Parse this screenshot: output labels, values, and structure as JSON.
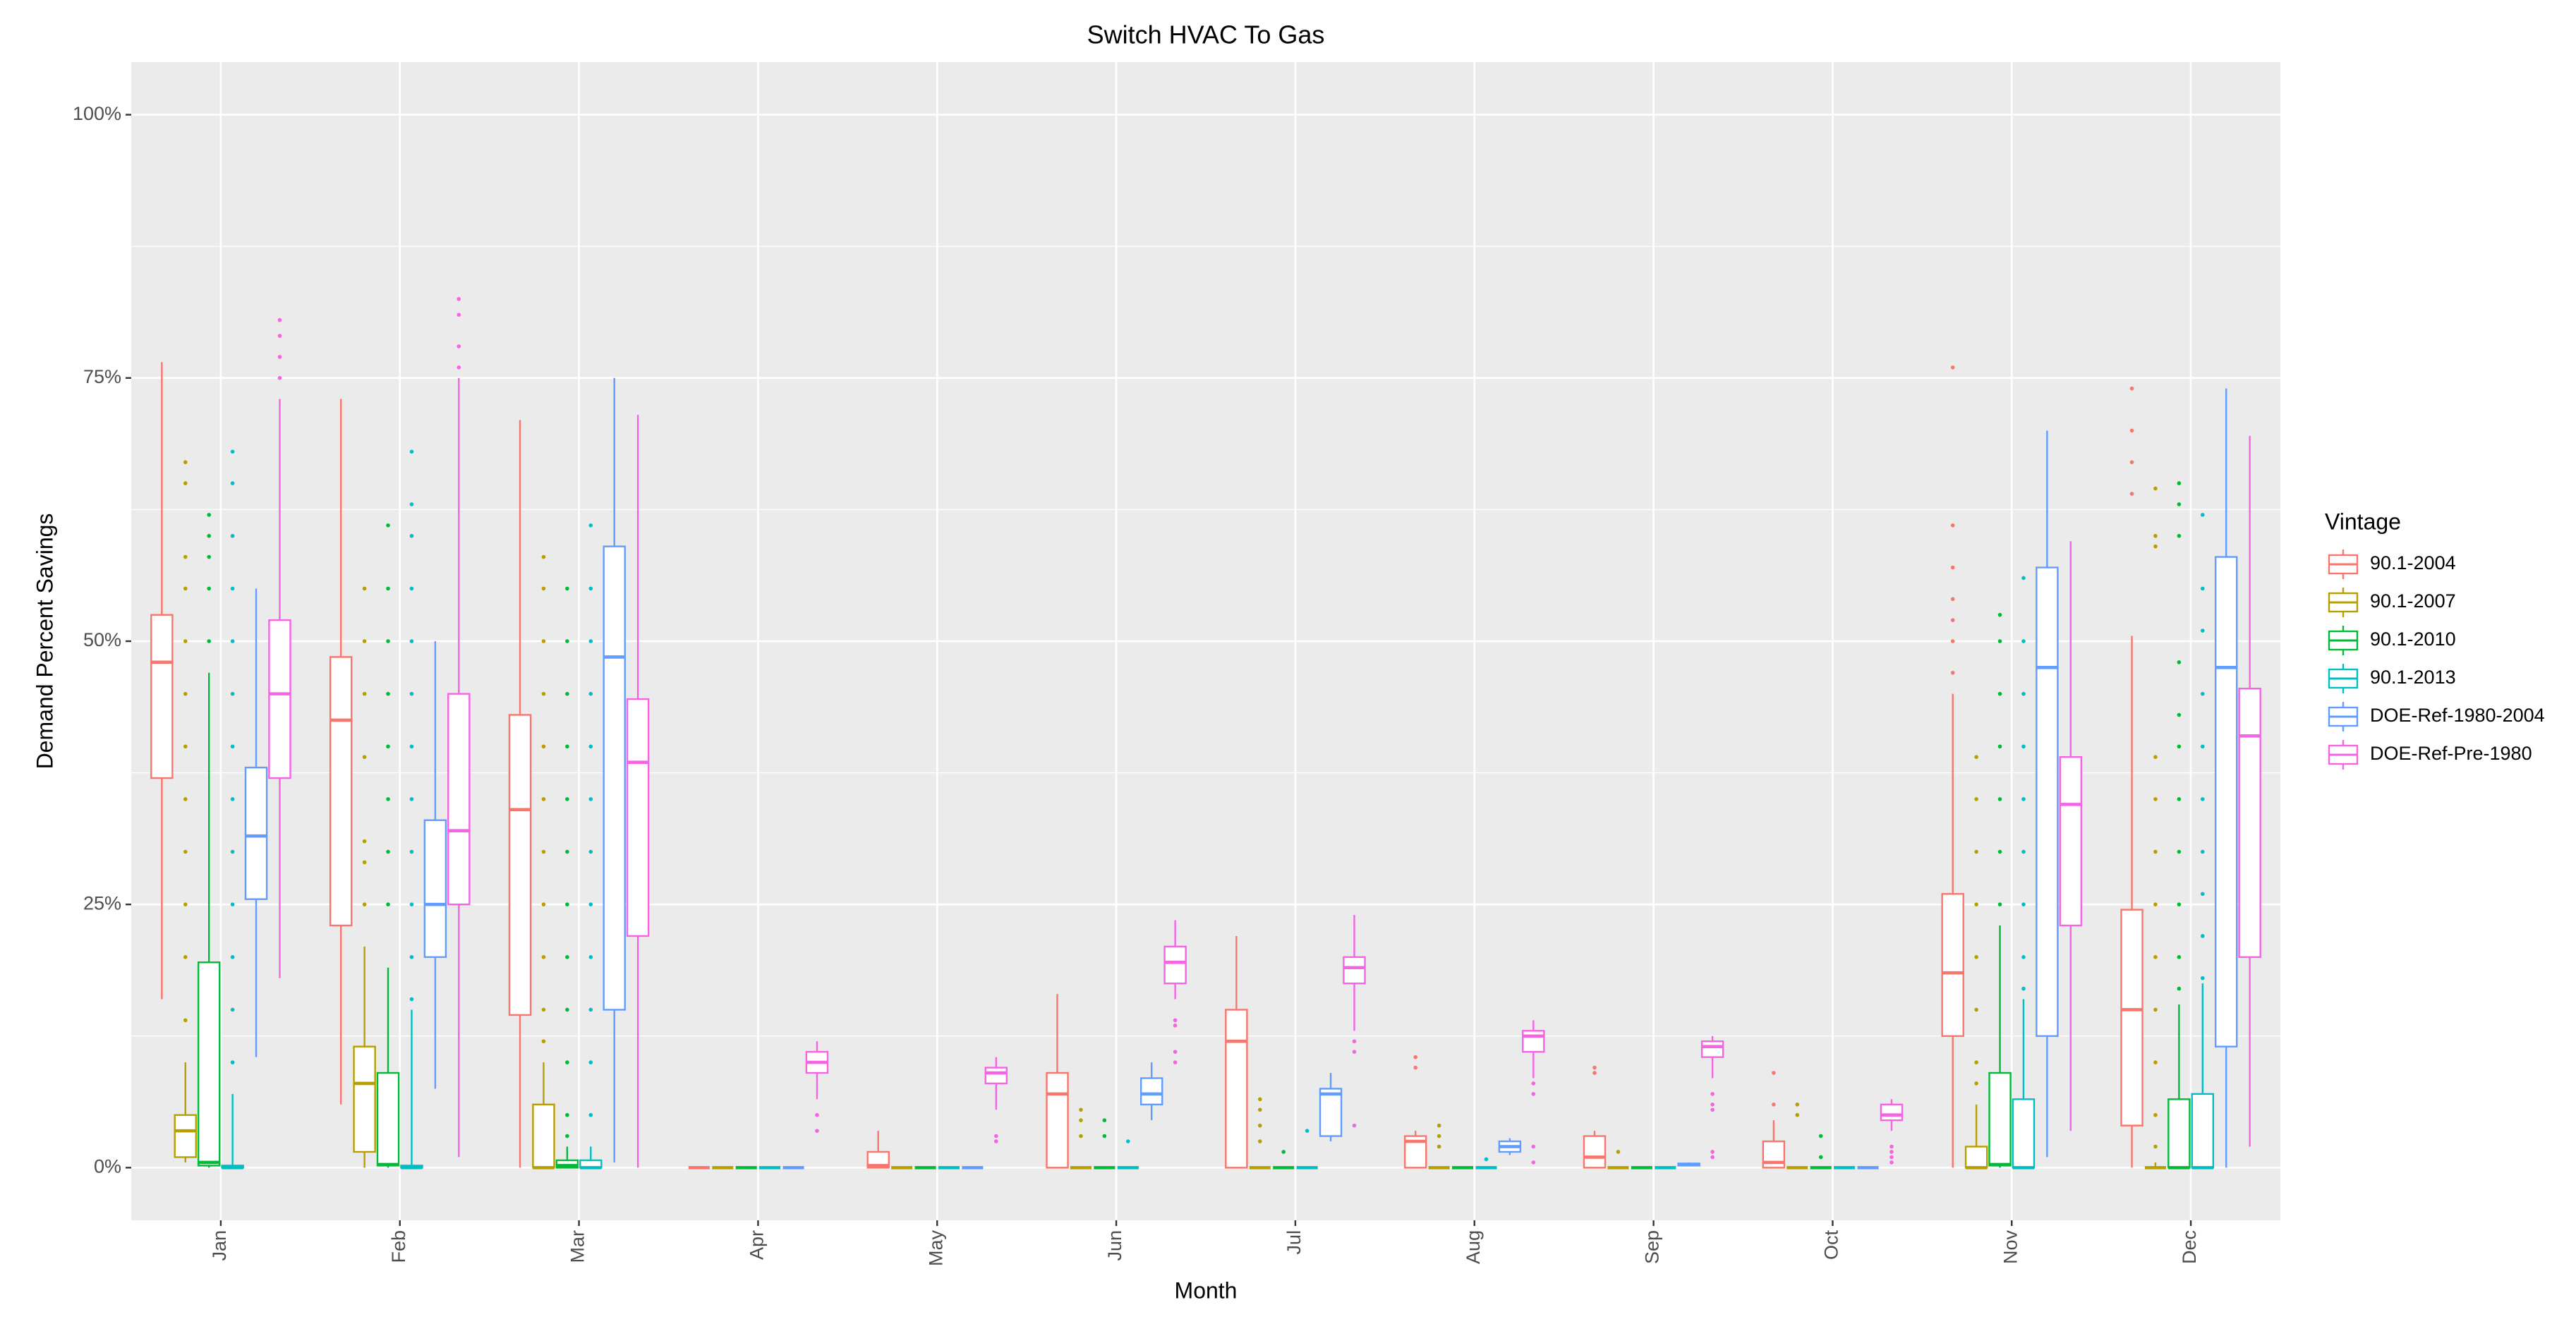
{
  "chart_data": {
    "type": "box",
    "title": "Switch HVAC To Gas",
    "x_label": "Month",
    "y_label": "Demand Percent Savings",
    "legend_title": "Vintage",
    "legend_position": "right",
    "grid": true,
    "categories": [
      "Jan",
      "Feb",
      "Mar",
      "Apr",
      "May",
      "Jun",
      "Jul",
      "Aug",
      "Sep",
      "Oct",
      "Nov",
      "Dec"
    ],
    "ylim": [
      -5,
      105
    ],
    "yticks": [
      {
        "value": 0,
        "label": "0%"
      },
      {
        "value": 25,
        "label": "25%"
      },
      {
        "value": 50,
        "label": "50%"
      },
      {
        "value": 75,
        "label": "75%"
      },
      {
        "value": 100,
        "label": "100%"
      }
    ],
    "series": [
      {
        "name": "90.1-2004",
        "color": "#F8766D",
        "values": [
          [
            16,
            37,
            48,
            52.5,
            76.5
          ],
          [
            6,
            23,
            42.5,
            48.5,
            73
          ],
          [
            0,
            14.5,
            34,
            43,
            71
          ],
          [
            0,
            0,
            0,
            0,
            0
          ],
          [
            0,
            0,
            0.2,
            1.5,
            3.5
          ],
          [
            0,
            0,
            7,
            9,
            16.5
          ],
          [
            0,
            0,
            12,
            15,
            22
          ],
          [
            0,
            0,
            2.5,
            3,
            3.5
          ],
          [
            0,
            0,
            1,
            3,
            3.5
          ],
          [
            0,
            0,
            0.5,
            2.5,
            4.5
          ],
          [
            0,
            12.5,
            18.5,
            26,
            45
          ],
          [
            0,
            4,
            15,
            24.5,
            50.5
          ]
        ],
        "outliers": [
          [],
          [],
          [],
          [],
          [],
          [],
          [],
          [
            9.5,
            10.5
          ],
          [
            9,
            9.5
          ],
          [
            6,
            9
          ],
          [
            47,
            50,
            52,
            54,
            57,
            61,
            76
          ],
          [
            64,
            67,
            70,
            74
          ]
        ]
      },
      {
        "name": "90.1-2007",
        "color": "#B79F00",
        "values": [
          [
            0.5,
            1,
            3.5,
            5,
            10
          ],
          [
            0,
            1.5,
            8,
            11.5,
            21
          ],
          [
            0,
            0,
            0,
            6,
            10
          ],
          [
            0,
            0,
            0,
            0,
            0
          ],
          [
            0,
            0,
            0,
            0,
            0
          ],
          [
            0,
            0,
            0,
            0,
            0
          ],
          [
            0,
            0,
            0,
            0,
            0
          ],
          [
            0,
            0,
            0,
            0,
            0
          ],
          [
            0,
            0,
            0,
            0,
            0
          ],
          [
            0,
            0,
            0,
            0,
            0
          ],
          [
            0,
            0,
            0,
            2,
            6
          ],
          [
            0,
            0,
            0,
            0,
            0.5
          ]
        ],
        "outliers": [
          [
            14,
            20,
            25,
            30,
            35,
            40,
            45,
            50,
            55,
            58,
            65,
            67
          ],
          [
            25,
            29,
            31,
            39,
            45,
            50,
            55
          ],
          [
            12,
            15,
            20,
            25,
            30,
            35,
            40,
            45,
            50,
            55,
            58
          ],
          [],
          [],
          [
            3,
            4.5,
            5.5
          ],
          [
            2.5,
            4,
            5.5,
            6.5
          ],
          [
            2,
            3,
            4
          ],
          [
            1.5
          ],
          [
            5,
            6
          ],
          [
            8,
            10,
            15,
            20,
            25,
            30,
            35,
            39
          ],
          [
            2,
            5,
            10,
            15,
            20,
            25,
            30,
            35,
            39,
            59,
            60,
            64.5
          ]
        ]
      },
      {
        "name": "90.1-2010",
        "color": "#00BA38",
        "values": [
          [
            0,
            0.2,
            0.5,
            19.5,
            47
          ],
          [
            0,
            0.2,
            0.3,
            9,
            19
          ],
          [
            0,
            0,
            0.2,
            0.7,
            2
          ],
          [
            0,
            0,
            0,
            0,
            0
          ],
          [
            0,
            0,
            0,
            0,
            0
          ],
          [
            0,
            0,
            0,
            0,
            0
          ],
          [
            0,
            0,
            0,
            0,
            0
          ],
          [
            0,
            0,
            0,
            0,
            0
          ],
          [
            0,
            0,
            0,
            0,
            0
          ],
          [
            0,
            0,
            0,
            0,
            0
          ],
          [
            0,
            0.2,
            0.3,
            9,
            23
          ],
          [
            0,
            0,
            0,
            6.5,
            15.5
          ]
        ],
        "outliers": [
          [
            50,
            55,
            58,
            60,
            62
          ],
          [
            25,
            30,
            35,
            40,
            45,
            50,
            55,
            61
          ],
          [
            3,
            5,
            10,
            15,
            20,
            25,
            30,
            35,
            40,
            45,
            50,
            55
          ],
          [],
          [],
          [
            3,
            4.5
          ],
          [
            1.5
          ],
          [],
          [],
          [
            1,
            3
          ],
          [
            25,
            30,
            35,
            40,
            45,
            50,
            52.5
          ],
          [
            17,
            20,
            25,
            30,
            35,
            40,
            43,
            48,
            60,
            63,
            65
          ]
        ]
      },
      {
        "name": "90.1-2013",
        "color": "#00BFC4",
        "values": [
          [
            0,
            0,
            0,
            0.2,
            7
          ],
          [
            0,
            0,
            0,
            0.2,
            15
          ],
          [
            0,
            0,
            0,
            0.7,
            2
          ],
          [
            0,
            0,
            0,
            0,
            0
          ],
          [
            0,
            0,
            0,
            0,
            0
          ],
          [
            0,
            0,
            0,
            0,
            0
          ],
          [
            0,
            0,
            0,
            0,
            0
          ],
          [
            0,
            0,
            0,
            0,
            0
          ],
          [
            0,
            0,
            0,
            0,
            0
          ],
          [
            0,
            0,
            0,
            0,
            0
          ],
          [
            0,
            0,
            0,
            6.5,
            16
          ],
          [
            0,
            0,
            0,
            7,
            17.5
          ]
        ],
        "outliers": [
          [
            10,
            15,
            20,
            25,
            30,
            35,
            40,
            45,
            50,
            55,
            60,
            65,
            68
          ],
          [
            16,
            20,
            25,
            30,
            35,
            40,
            45,
            50,
            55,
            60,
            63,
            68
          ],
          [
            5,
            10,
            15,
            20,
            25,
            30,
            35,
            40,
            45,
            50,
            55,
            61
          ],
          [],
          [],
          [
            2.5
          ],
          [
            3.5
          ],
          [
            0.8
          ],
          [],
          [],
          [
            17,
            20,
            25,
            30,
            35,
            40,
            45,
            50,
            56
          ],
          [
            18,
            22,
            26,
            30,
            35,
            40,
            45,
            51,
            55,
            62
          ]
        ]
      },
      {
        "name": "DOE-Ref-1980-2004",
        "color": "#619CFF",
        "values": [
          [
            10.5,
            25.5,
            31.5,
            38,
            55
          ],
          [
            7.5,
            20,
            25,
            33,
            50
          ],
          [
            0.5,
            15,
            48.5,
            59,
            75
          ],
          [
            0,
            0,
            0,
            0,
            0
          ],
          [
            0,
            0,
            0,
            0,
            0
          ],
          [
            4.5,
            6,
            7,
            8.5,
            10
          ],
          [
            2.5,
            3,
            7,
            7.5,
            9
          ],
          [
            1.2,
            1.5,
            2,
            2.5,
            2.8
          ],
          [
            0.2,
            0.2,
            0.3,
            0.4,
            0.5
          ],
          [
            0,
            0,
            0,
            0,
            0
          ],
          [
            1,
            12.5,
            47.5,
            57,
            70
          ],
          [
            0,
            11.5,
            47.5,
            58,
            74
          ]
        ],
        "outliers": [
          [],
          [],
          [],
          [],
          [],
          [],
          [],
          [],
          [],
          [],
          [],
          []
        ]
      },
      {
        "name": "DOE-Ref-Pre-1980",
        "color": "#F564E3",
        "values": [
          [
            18,
            37,
            45,
            52,
            73
          ],
          [
            1,
            25,
            32,
            45,
            75
          ],
          [
            0,
            22,
            38.5,
            44.5,
            71.5
          ],
          [
            6.5,
            9,
            10,
            11,
            12
          ],
          [
            5.5,
            8,
            9,
            9.5,
            10.5
          ],
          [
            16,
            17.5,
            19.5,
            21,
            23.5
          ],
          [
            13,
            17.5,
            19,
            20,
            24
          ],
          [
            8.5,
            11,
            12.5,
            13,
            14
          ],
          [
            8.5,
            10.5,
            11.5,
            12,
            12.5
          ],
          [
            3.5,
            4.5,
            5,
            6,
            6.5
          ],
          [
            3.5,
            23,
            34.5,
            39,
            59.5
          ],
          [
            2,
            20,
            41,
            45.5,
            69.5
          ]
        ],
        "outliers": [
          [
            75,
            77,
            79,
            80.5
          ],
          [
            76,
            78,
            81,
            82.5
          ],
          [],
          [
            3.5,
            5
          ],
          [
            2.5,
            3
          ],
          [
            10,
            11,
            13.5,
            14
          ],
          [
            4,
            11,
            12
          ],
          [
            0.5,
            2,
            7,
            8
          ],
          [
            1,
            1.5,
            5.5,
            6,
            7
          ],
          [
            0.5,
            1,
            1.5,
            2
          ],
          [],
          []
        ]
      }
    ]
  }
}
